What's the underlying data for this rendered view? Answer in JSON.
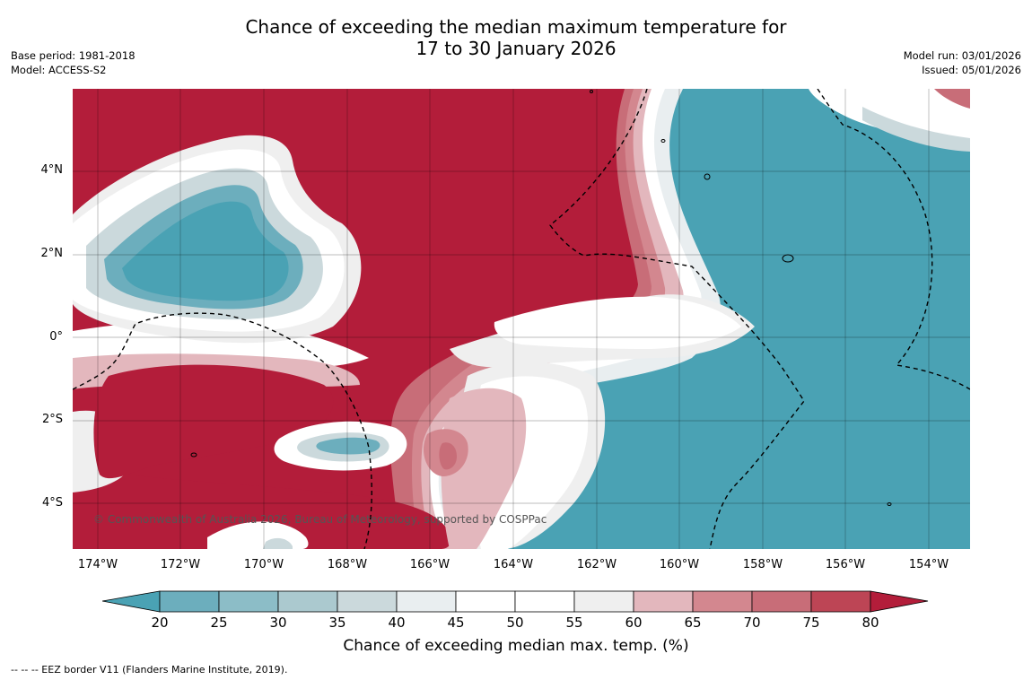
{
  "header": {
    "title_line1": "Chance of exceeding the median maximum temperature for",
    "title_line2": "17 to 30 January 2026",
    "base_period": "Base period: 1981-2018",
    "model": "Model: ACCESS-S2",
    "model_run": "Model run: 03/01/2026",
    "issued": "Issued: 05/01/2026"
  },
  "map": {
    "lat_labels": [
      "4°N",
      "2°N",
      "0°",
      "2°S",
      "4°S"
    ],
    "lon_labels": [
      "174°W",
      "172°W",
      "170°W",
      "168°W",
      "166°W",
      "164°W",
      "162°W",
      "160°W",
      "158°W",
      "156°W",
      "154°W"
    ],
    "copyright": "© Commonwealth of Australia 2026, Bureau of Meteorology, supported by COSPPac"
  },
  "colorbar": {
    "ticks": [
      "20",
      "25",
      "30",
      "35",
      "40",
      "45",
      "50",
      "55",
      "60",
      "65",
      "70",
      "75",
      "80"
    ],
    "colors": {
      "below_20": "#4aa2b4",
      "20_25": "#6caebd",
      "25_30": "#8cbdc7",
      "30_35": "#abc9cf",
      "35_40": "#cbd9dc",
      "40_45": "#e9eef0",
      "45_50": "#ffffff",
      "50_55": "#ffffff",
      "55_60": "#efefef",
      "60_65": "#e3b7bd",
      "65_70": "#d3878f",
      "70_75": "#c86d78",
      "75_80": "#bd4555",
      "above_80": "#b31d3a"
    },
    "label": "Chance of exceeding median max. temp. (%)"
  },
  "footer": {
    "eez_note": "--  --  -- EEZ border V11 (Flanders Marine Institute, 2019)."
  }
}
